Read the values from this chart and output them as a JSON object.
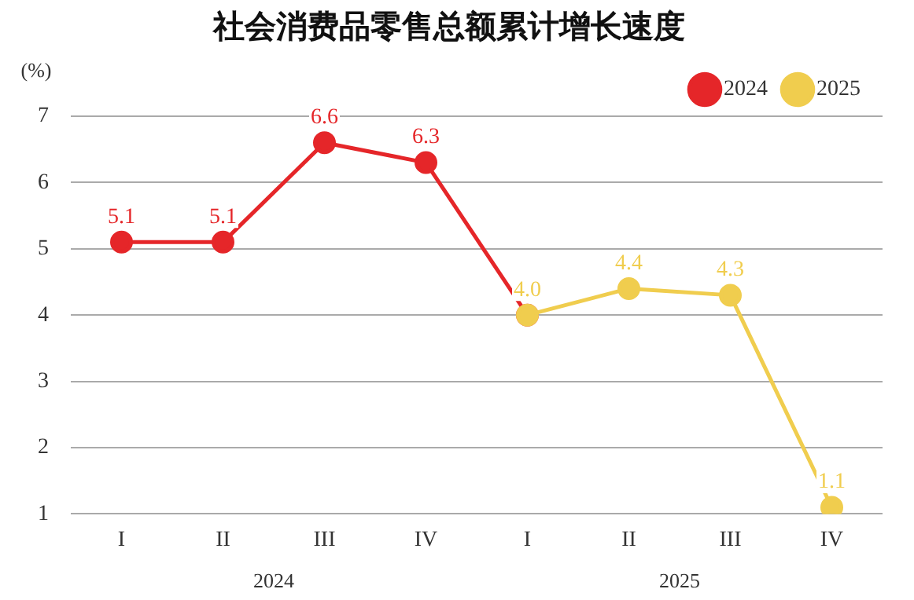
{
  "chart_data": {
    "type": "line",
    "title": "社会消费品零售总额累计增长速度",
    "ylabel": "(%)",
    "categories": [
      "I",
      "II",
      "III",
      "IV",
      "I",
      "II",
      "III",
      "IV"
    ],
    "series": [
      {
        "name": "2024",
        "color": "#e52629",
        "values": [
          5.1,
          5.1,
          6.6,
          6.3,
          4.0,
          null,
          null,
          null
        ],
        "value_labels": [
          "5.1",
          "5.1",
          "6.6",
          "6.3",
          null,
          null,
          null,
          null
        ]
      },
      {
        "name": "2025",
        "color": "#f0cd4e",
        "values": [
          null,
          null,
          null,
          null,
          4.0,
          4.4,
          4.3,
          1.1
        ],
        "value_labels": [
          null,
          null,
          null,
          null,
          "4.0",
          "4.4",
          "4.3",
          "1.1"
        ]
      }
    ],
    "annotations": [
      "2024",
      "2025"
    ],
    "ylim": [
      1,
      7
    ],
    "yticks": [
      1,
      2,
      3,
      4,
      5,
      6,
      7
    ],
    "grid": "y",
    "legend": "top right",
    "marker": "circle"
  }
}
